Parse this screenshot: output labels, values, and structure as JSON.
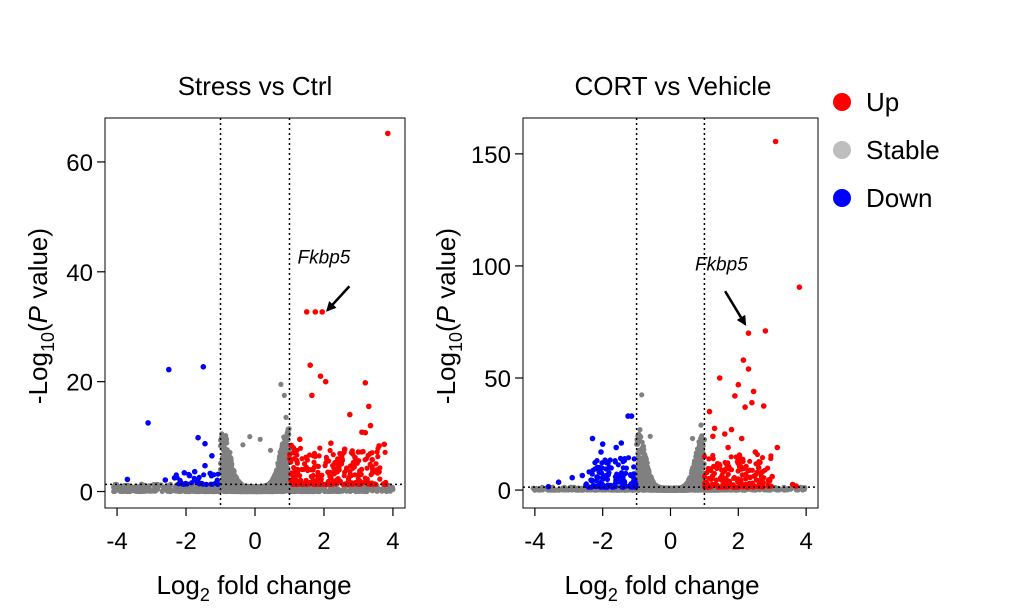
{
  "legend": {
    "items": [
      {
        "label": "Up",
        "color": "#ff0000"
      },
      {
        "label": "Stable",
        "color": "#bebebe"
      },
      {
        "label": "Down",
        "color": "#0000ff"
      }
    ]
  },
  "chart_data": [
    {
      "type": "scatter",
      "title": "Stress vs Ctrl",
      "xlabel": "Log2 fold change",
      "ylabel": "-Log10(P value)",
      "xlim": [
        -4.35,
        4.35
      ],
      "ylim": [
        -3,
        68
      ],
      "xticks": [
        -4,
        -2,
        0,
        2,
        4
      ],
      "yticks": [
        0,
        20,
        40,
        60
      ],
      "fc_threshold": [
        -1,
        1
      ],
      "p_threshold": 1.3,
      "annotation": {
        "text": "Fkbp5",
        "x": 2.0,
        "y": 41.5,
        "arrow_to": [
          2.1,
          33
        ]
      },
      "stable_cloud": {
        "n": 2100,
        "seed": 11,
        "peak": 10.5
      },
      "stable_points": [
        [
          -0.35,
          8.5
        ],
        [
          -0.15,
          10
        ],
        [
          0.15,
          9.5
        ],
        [
          0.45,
          7.5
        ],
        [
          0.75,
          19.5
        ],
        [
          0.85,
          17.5
        ],
        [
          0.95,
          11
        ],
        [
          0.9,
          13.5
        ]
      ],
      "series": [
        {
          "name": "Up",
          "color": "#ff0000",
          "points": [
            [
              3.85,
              65.2
            ],
            [
              1.5,
              32.7
            ],
            [
              1.75,
              32.7
            ],
            [
              1.95,
              32.7
            ],
            [
              1.6,
              23
            ],
            [
              1.9,
              21
            ],
            [
              2.05,
              20
            ],
            [
              3.2,
              19.8
            ],
            [
              1.65,
              17.5
            ],
            [
              3.3,
              15.5
            ],
            [
              2.75,
              14
            ],
            [
              3.35,
              12
            ],
            [
              3.1,
              10.8
            ],
            [
              3.2,
              10.7
            ],
            [
              3.75,
              8.6
            ],
            [
              3.6,
              8.3
            ],
            [
              2.2,
              8.8
            ],
            [
              2.6,
              7.7
            ],
            [
              3.0,
              7.2
            ],
            [
              1.3,
              9.5
            ],
            [
              1.05,
              8.4
            ],
            [
              1.15,
              7.6
            ],
            [
              2.9,
              6.2
            ],
            [
              3.4,
              5.8
            ],
            [
              1.7,
              6.5
            ],
            [
              2.4,
              5.9
            ]
          ],
          "cloud": {
            "n": 230,
            "seed": 23,
            "xmin": 1.0,
            "xmax": 3.8,
            "ymax": 8
          }
        },
        {
          "name": "Down",
          "color": "#0000ff",
          "points": [
            [
              -1.5,
              22.7
            ],
            [
              -2.5,
              22.2
            ],
            [
              -3.1,
              12.5
            ],
            [
              -1.65,
              9.8
            ],
            [
              -1.45,
              8.7
            ],
            [
              -1.25,
              6.5
            ],
            [
              -1.45,
              4.7
            ],
            [
              -1.75,
              3.6
            ],
            [
              -2.05,
              3.4
            ],
            [
              -1.9,
              2.9
            ],
            [
              -3.7,
              2.2
            ],
            [
              -2.6,
              2.1
            ],
            [
              -1.3,
              3.3
            ]
          ],
          "cloud": {
            "n": 34,
            "seed": 31,
            "xmin": -2.4,
            "xmax": -1.0,
            "ymax": 3.2
          }
        }
      ]
    },
    {
      "type": "scatter",
      "title": "CORT vs Vehicle",
      "xlabel": "Log2 fold change",
      "ylabel": "-Log10(P value)",
      "xlim": [
        -4.35,
        4.35
      ],
      "ylim": [
        -8,
        166
      ],
      "xticks": [
        -4,
        -2,
        0,
        2,
        4
      ],
      "yticks": [
        0,
        50,
        100,
        150
      ],
      "fc_threshold": [
        -1,
        1
      ],
      "p_threshold": 1.3,
      "annotation": {
        "text": "Fkbp5",
        "x": 1.5,
        "y": 98,
        "arrow_to": [
          2.2,
          74
        ]
      },
      "stable_cloud": {
        "n": 2100,
        "seed": 47,
        "peak": 24
      },
      "stable_points": [
        [
          -0.85,
          42.5
        ],
        [
          -0.9,
          27
        ],
        [
          -0.6,
          24
        ],
        [
          0.9,
          29
        ],
        [
          0.65,
          23
        ]
      ],
      "series": [
        {
          "name": "Up",
          "color": "#ff0000",
          "points": [
            [
              3.1,
              155.5
            ],
            [
              3.8,
              90.5
            ],
            [
              2.8,
              71
            ],
            [
              2.3,
              70
            ],
            [
              2.15,
              58
            ],
            [
              2.3,
              54
            ],
            [
              1.45,
              50
            ],
            [
              2.0,
              47
            ],
            [
              2.45,
              44
            ],
            [
              1.9,
              42
            ],
            [
              2.4,
              39
            ],
            [
              2.2,
              37
            ],
            [
              1.15,
              35
            ],
            [
              2.75,
              37.5
            ],
            [
              1.3,
              27.5
            ],
            [
              1.8,
              27
            ],
            [
              1.6,
              25
            ],
            [
              2.1,
              23
            ],
            [
              1.25,
              24
            ],
            [
              3.15,
              19
            ],
            [
              2.5,
              17
            ],
            [
              1.7,
              19
            ],
            [
              2.0,
              12
            ],
            [
              2.6,
              10
            ],
            [
              1.45,
              11
            ],
            [
              3.0,
              6
            ],
            [
              3.6,
              2.5
            ],
            [
              3.7,
              1.8
            ]
          ],
          "cloud": {
            "n": 180,
            "seed": 59,
            "xmin": 1.0,
            "xmax": 3.0,
            "ymax": 16
          }
        },
        {
          "name": "Down",
          "color": "#0000ff",
          "points": [
            [
              -1.25,
              33
            ],
            [
              -1.15,
              33
            ],
            [
              -2.3,
              23
            ],
            [
              -2.0,
              20.5
            ],
            [
              -1.45,
              21
            ],
            [
              -1.6,
              19
            ],
            [
              -2.05,
              17
            ],
            [
              -3.3,
              3.5
            ],
            [
              -2.9,
              5.5
            ],
            [
              -3.6,
              1.5
            ],
            [
              -2.6,
              6.5
            ],
            [
              -1.8,
              10
            ]
          ],
          "cloud": {
            "n": 130,
            "seed": 71,
            "xmin": -2.5,
            "xmax": -1.0,
            "ymax": 15
          }
        }
      ]
    }
  ]
}
